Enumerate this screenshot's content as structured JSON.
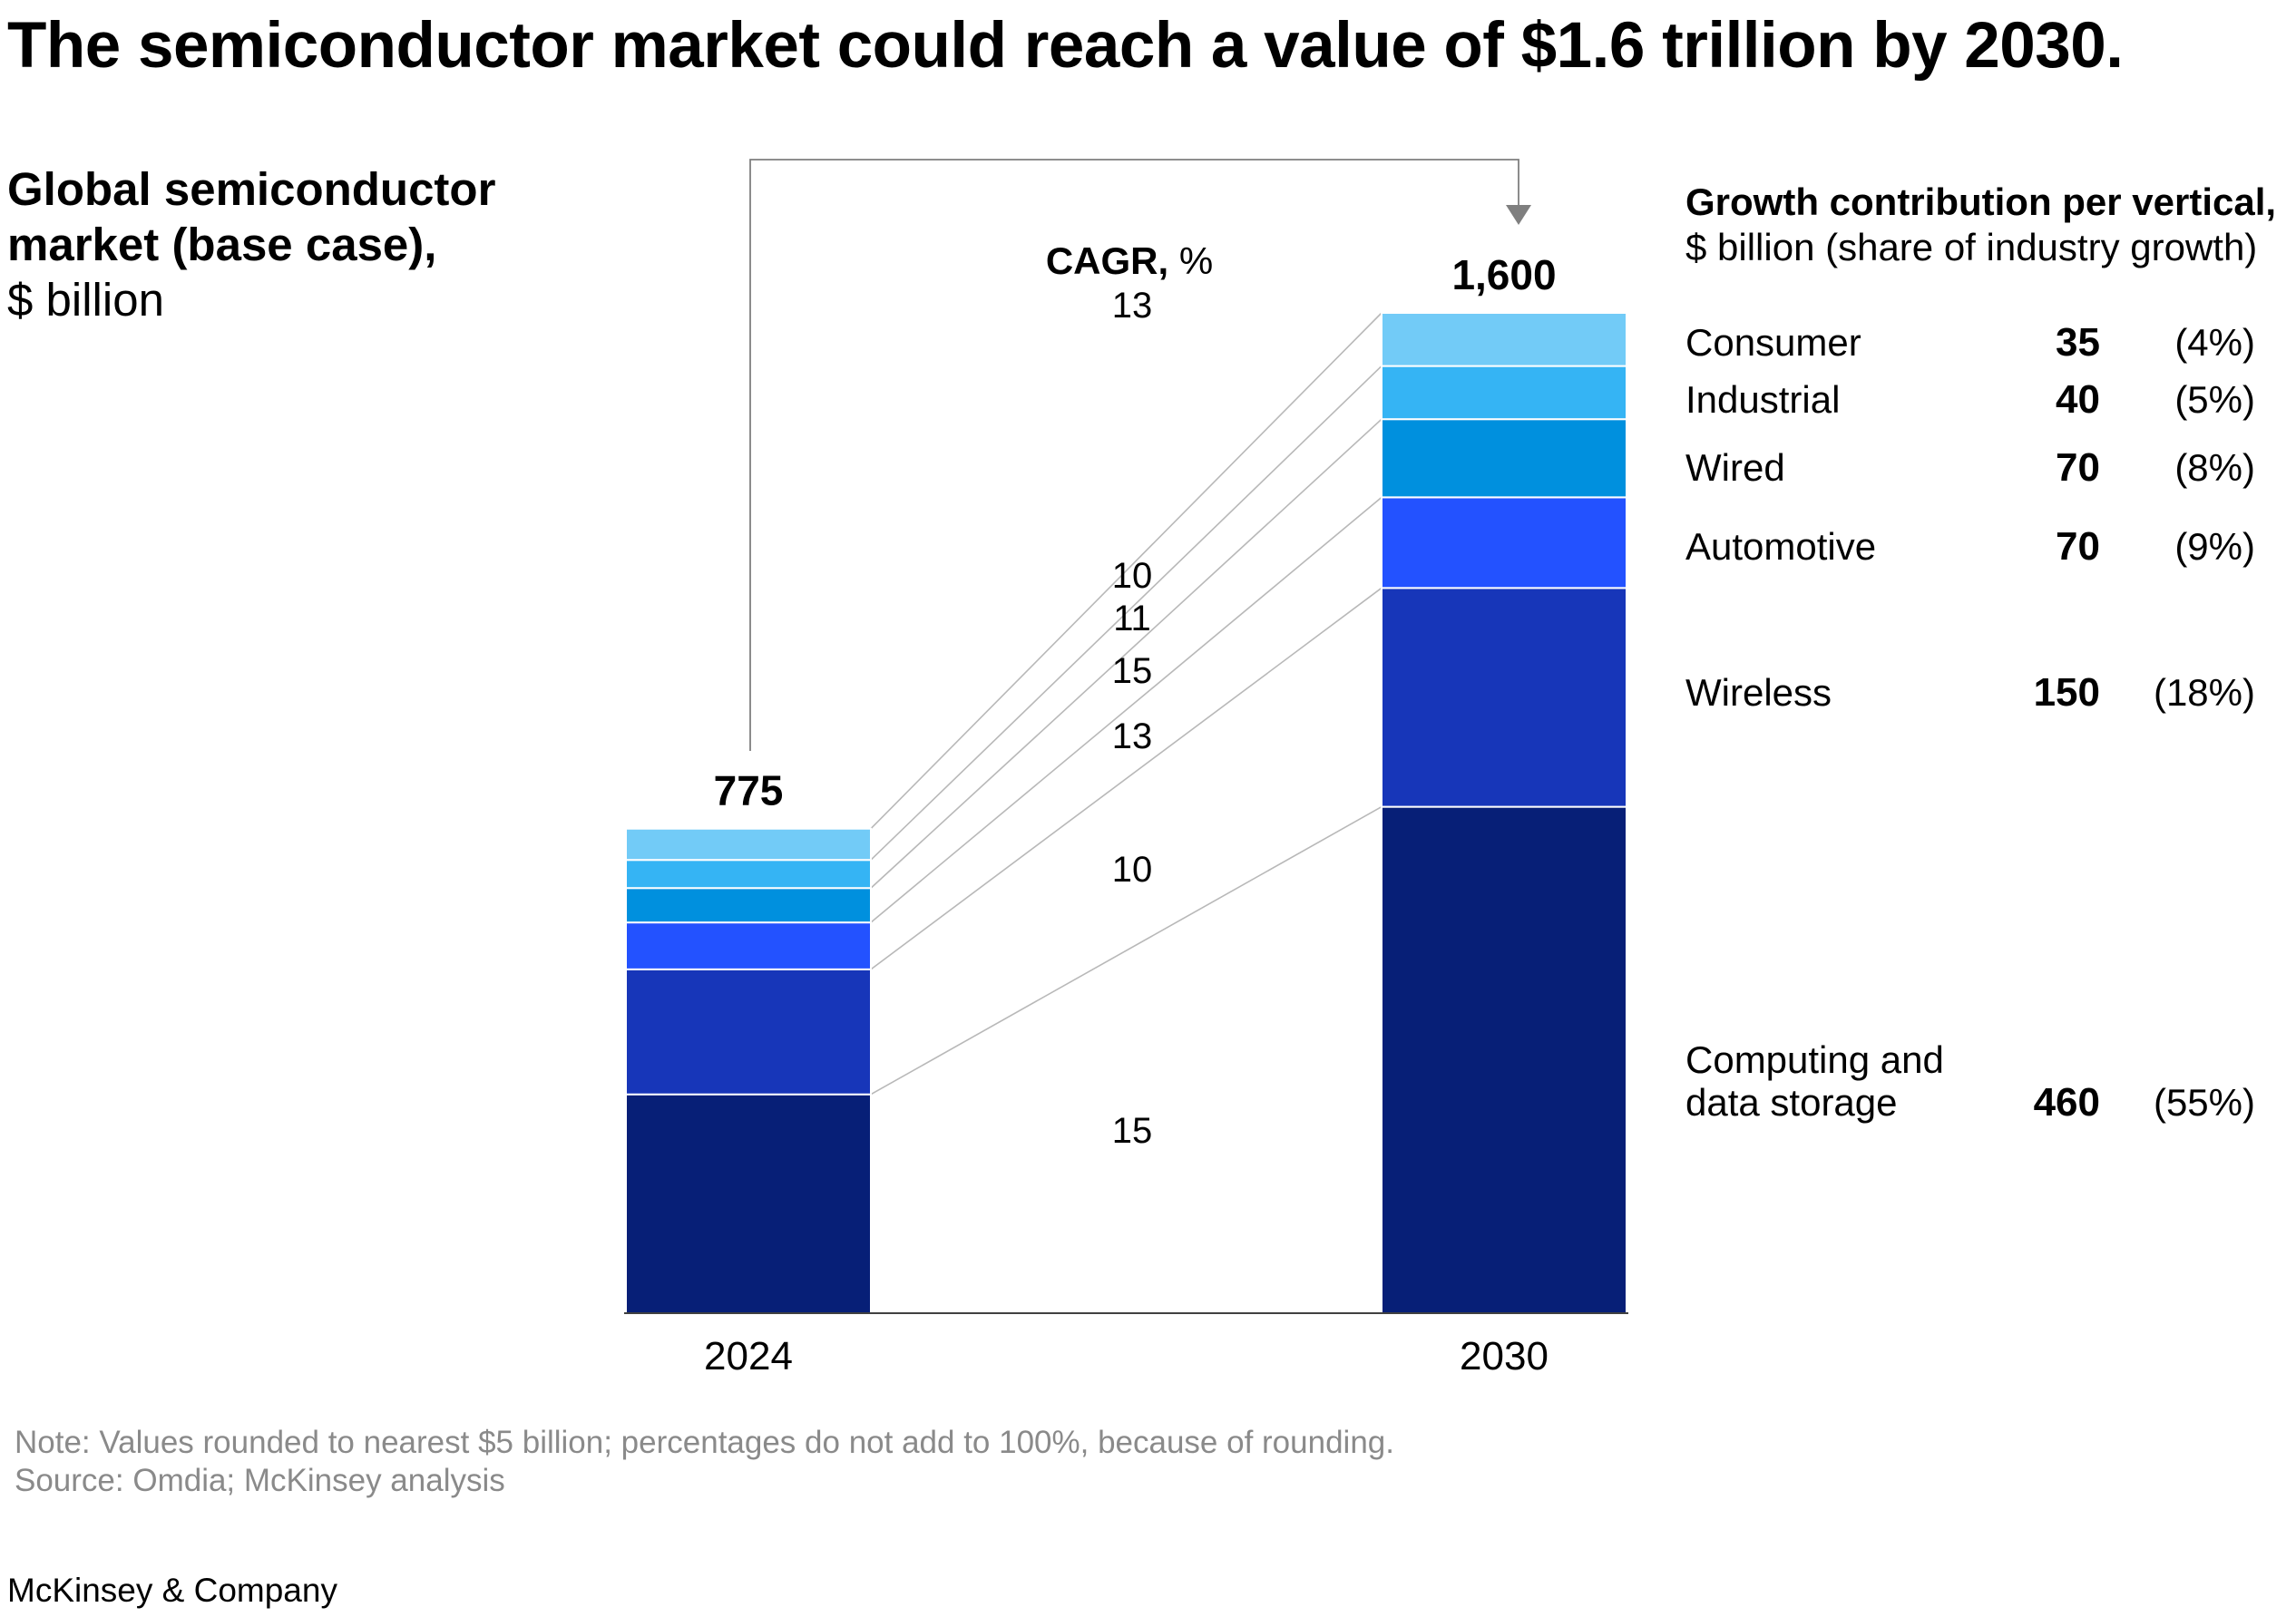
{
  "title": "The semiconductor market could reach a value of $1.6 trillion by 2030.",
  "subtitle": {
    "bold_line1": "Global semiconductor",
    "bold_line2": "market (base case),",
    "unit": "$ billion"
  },
  "growth_header": {
    "bold": "Growth contribution per vertical,",
    "unit": "$ billion (share of industry growth)"
  },
  "cagr_header": {
    "bold": "CAGR,",
    "unit": " %"
  },
  "notes": {
    "note": "Note: Values rounded to nearest $5 billion; percentages do not add to 100%, because of rounding.",
    "source": "Source: Omdia; McKinsey analysis"
  },
  "brand": "McKinsey & Company",
  "colors": {
    "computing_and_data_storage": "#071f77",
    "wireless": "#1736b9",
    "automotive": "#2352ff",
    "wired": "#0090de",
    "industrial": "#35b4f4",
    "consumer": "#72cbf7",
    "connector": "#b8b8b8",
    "arrow": "#7f7f7f"
  },
  "chart_data": {
    "type": "bar",
    "stacked": true,
    "categories": [
      "2024",
      "2030"
    ],
    "totals": [
      775,
      1600
    ],
    "total_labels": [
      "775",
      "1,600"
    ],
    "series": [
      {
        "name": "Computing and data storage",
        "color_key": "computing_and_data_storage",
        "values": [
          350,
          810
        ],
        "cagr": "15",
        "growth": "460",
        "share": "(55%)"
      },
      {
        "name": "Wireless",
        "color_key": "wireless",
        "values": [
          200,
          350
        ],
        "cagr": "10",
        "growth": "150",
        "share": "(18%)"
      },
      {
        "name": "Automotive",
        "color_key": "automotive",
        "values": [
          75,
          145
        ],
        "cagr": "13",
        "growth": "70",
        "share": "(9%)"
      },
      {
        "name": "Wired",
        "color_key": "wired",
        "values": [
          55,
          125
        ],
        "cagr": "15",
        "growth": "70",
        "share": "(8%)"
      },
      {
        "name": "Industrial",
        "color_key": "industrial",
        "values": [
          45,
          85
        ],
        "cagr": "11",
        "growth": "40",
        "share": "(5%)"
      },
      {
        "name": "Consumer",
        "color_key": "consumer",
        "values": [
          50,
          85
        ],
        "cagr": "10",
        "growth": "35",
        "share": "(4%)"
      }
    ],
    "overall_cagr": "13",
    "ylim": [
      0,
      1600
    ],
    "grid": false,
    "legend": "right"
  }
}
